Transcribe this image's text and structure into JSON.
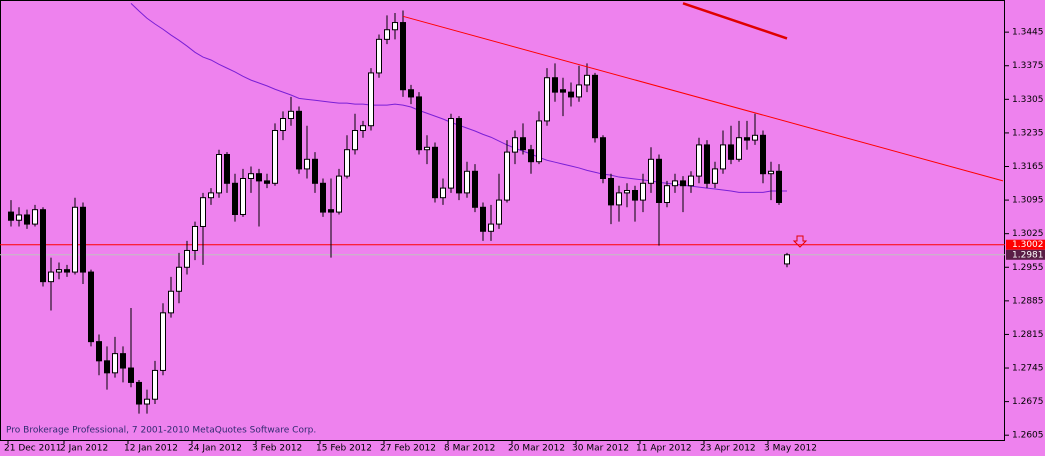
{
  "chart_data": {
    "type": "candlestick",
    "footer": "Pro Brokerage Professional, 7 2001-2010 MetaQuotes Software Corp.",
    "categories": [
      "21 Dec 2011",
      null,
      null,
      null,
      null,
      null,
      null,
      "2 Jan 2012",
      null,
      null,
      null,
      null,
      null,
      null,
      null,
      "12 Jan 2012",
      null,
      null,
      null,
      null,
      null,
      null,
      null,
      "24 Jan 2012",
      null,
      null,
      null,
      null,
      null,
      null,
      null,
      "3 Feb 2012",
      null,
      null,
      null,
      null,
      null,
      null,
      null,
      "15 Feb 2012",
      null,
      null,
      null,
      null,
      null,
      null,
      null,
      "27 Feb 2012",
      null,
      null,
      null,
      null,
      null,
      null,
      null,
      "8 Mar 2012",
      null,
      null,
      null,
      null,
      null,
      null,
      null,
      "20 Mar 2012",
      null,
      null,
      null,
      null,
      null,
      null,
      null,
      "30 Mar 2012",
      null,
      null,
      null,
      null,
      null,
      null,
      null,
      "11 Apr 2012",
      null,
      null,
      null,
      null,
      null,
      null,
      null,
      "23 Apr 2012",
      null,
      null,
      null,
      null,
      null,
      null,
      null,
      "3 May 2012",
      null,
      null
    ],
    "candles": [
      [
        1.307,
        1.3095,
        1.304,
        1.3053
      ],
      [
        1.3053,
        1.308,
        1.304,
        1.3064
      ],
      [
        1.3064,
        1.3075,
        1.3035,
        1.3045
      ],
      [
        1.3045,
        1.3085,
        1.304,
        1.3075
      ],
      [
        1.3075,
        1.308,
        1.2915,
        1.2925
      ],
      [
        1.2925,
        1.2975,
        1.2865,
        1.2945
      ],
      [
        1.2945,
        1.2965,
        1.293,
        1.295
      ],
      [
        1.295,
        1.296,
        1.2935,
        1.2945
      ],
      [
        1.2945,
        1.31,
        1.294,
        1.308
      ],
      [
        1.308,
        1.309,
        1.292,
        1.2945
      ],
      [
        1.2945,
        1.295,
        1.279,
        1.28
      ],
      [
        1.28,
        1.2815,
        1.273,
        1.276
      ],
      [
        1.276,
        1.279,
        1.27,
        1.2735
      ],
      [
        1.2735,
        1.281,
        1.2725,
        1.2775
      ],
      [
        1.2775,
        1.279,
        1.2715,
        1.2745
      ],
      [
        1.2745,
        1.287,
        1.2705,
        1.2715
      ],
      [
        1.2715,
        1.272,
        1.265,
        1.267
      ],
      [
        1.267,
        1.27,
        1.265,
        1.268
      ],
      [
        1.268,
        1.276,
        1.267,
        1.274
      ],
      [
        1.274,
        1.288,
        1.273,
        1.286
      ],
      [
        1.286,
        1.2935,
        1.285,
        1.2905
      ],
      [
        1.2905,
        1.2985,
        1.288,
        1.2955
      ],
      [
        1.2955,
        1.301,
        1.294,
        1.299
      ],
      [
        1.299,
        1.305,
        1.297,
        1.304
      ],
      [
        1.304,
        1.311,
        1.296,
        1.31
      ],
      [
        1.31,
        1.312,
        1.3085,
        1.311
      ],
      [
        1.311,
        1.32,
        1.31,
        1.319
      ],
      [
        1.319,
        1.3195,
        1.311,
        1.313
      ],
      [
        1.313,
        1.315,
        1.305,
        1.3065
      ],
      [
        1.3065,
        1.316,
        1.306,
        1.314
      ],
      [
        1.314,
        1.3165,
        1.311,
        1.315
      ],
      [
        1.315,
        1.316,
        1.304,
        1.3135
      ],
      [
        1.3135,
        1.315,
        1.312,
        1.313
      ],
      [
        1.313,
        1.3255,
        1.3125,
        1.324
      ],
      [
        1.324,
        1.328,
        1.322,
        1.3265
      ],
      [
        1.3265,
        1.331,
        1.325,
        1.328
      ],
      [
        1.328,
        1.329,
        1.315,
        1.316
      ],
      [
        1.316,
        1.325,
        1.314,
        1.318
      ],
      [
        1.318,
        1.3195,
        1.311,
        1.313
      ],
      [
        1.313,
        1.314,
        1.306,
        1.307
      ],
      [
        1.3075,
        1.314,
        1.2975,
        1.307
      ],
      [
        1.307,
        1.316,
        1.3065,
        1.3145
      ],
      [
        1.3145,
        1.323,
        1.314,
        1.32
      ],
      [
        1.32,
        1.3275,
        1.319,
        1.324
      ],
      [
        1.324,
        1.326,
        1.3225,
        1.325
      ],
      [
        1.325,
        1.337,
        1.324,
        1.336
      ],
      [
        1.336,
        1.344,
        1.335,
        1.343
      ],
      [
        1.343,
        1.348,
        1.342,
        1.345
      ],
      [
        1.345,
        1.3485,
        1.343,
        1.3465
      ],
      [
        1.3465,
        1.349,
        1.331,
        1.3325
      ],
      [
        1.3325,
        1.3335,
        1.3295,
        1.331
      ],
      [
        1.331,
        1.332,
        1.319,
        1.32
      ],
      [
        1.32,
        1.323,
        1.317,
        1.3205
      ],
      [
        1.3205,
        1.3215,
        1.309,
        1.31
      ],
      [
        1.31,
        1.314,
        1.3085,
        1.312
      ],
      [
        1.312,
        1.3275,
        1.311,
        1.3265
      ],
      [
        1.3265,
        1.327,
        1.3095,
        1.311
      ],
      [
        1.311,
        1.3175,
        1.31,
        1.3155
      ],
      [
        1.3155,
        1.317,
        1.307,
        1.308
      ],
      [
        1.308,
        1.309,
        1.301,
        1.303
      ],
      [
        1.303,
        1.3085,
        1.301,
        1.3045
      ],
      [
        1.3045,
        1.315,
        1.3035,
        1.3095
      ],
      [
        1.3095,
        1.322,
        1.309,
        1.3195
      ],
      [
        1.3195,
        1.324,
        1.317,
        1.3225
      ],
      [
        1.3225,
        1.3255,
        1.319,
        1.32
      ],
      [
        1.32,
        1.321,
        1.315,
        1.3175
      ],
      [
        1.3175,
        1.328,
        1.317,
        1.326
      ],
      [
        1.326,
        1.337,
        1.325,
        1.335
      ],
      [
        1.335,
        1.338,
        1.33,
        1.332
      ],
      [
        1.3325,
        1.335,
        1.327,
        1.332
      ],
      [
        1.332,
        1.334,
        1.329,
        1.331
      ],
      [
        1.331,
        1.3375,
        1.33,
        1.3335
      ],
      [
        1.3335,
        1.338,
        1.332,
        1.3355
      ],
      [
        1.3355,
        1.336,
        1.3215,
        1.3225
      ],
      [
        1.3225,
        1.323,
        1.313,
        1.314
      ],
      [
        1.314,
        1.315,
        1.3045,
        1.3085
      ],
      [
        1.3085,
        1.3125,
        1.305,
        1.311
      ],
      [
        1.311,
        1.313,
        1.308,
        1.3115
      ],
      [
        1.3115,
        1.3125,
        1.305,
        1.3095
      ],
      [
        1.3095,
        1.315,
        1.307,
        1.313
      ],
      [
        1.313,
        1.3205,
        1.311,
        1.318
      ],
      [
        1.318,
        1.319,
        1.3,
        1.309
      ],
      [
        1.309,
        1.3135,
        1.308,
        1.3125
      ],
      [
        1.3125,
        1.315,
        1.311,
        1.3135
      ],
      [
        1.3135,
        1.3145,
        1.307,
        1.3125
      ],
      [
        1.3125,
        1.3155,
        1.311,
        1.3145
      ],
      [
        1.3145,
        1.3225,
        1.313,
        1.321
      ],
      [
        1.321,
        1.322,
        1.312,
        1.313
      ],
      [
        1.313,
        1.3175,
        1.312,
        1.316
      ],
      [
        1.316,
        1.324,
        1.315,
        1.321
      ],
      [
        1.321,
        1.325,
        1.317,
        1.318
      ],
      [
        1.318,
        1.326,
        1.3175,
        1.3225
      ],
      [
        1.3225,
        1.326,
        1.32,
        1.322
      ],
      [
        1.322,
        1.3275,
        1.321,
        1.323
      ],
      [
        1.323,
        1.324,
        1.313,
        1.315
      ],
      [
        1.315,
        1.3175,
        1.3095,
        1.3155
      ],
      [
        1.3155,
        1.317,
        1.3085,
        1.309
      ],
      [
        1.2962,
        1.2985,
        1.2955,
        1.2981
      ]
    ],
    "moving_average": {
      "color": "#7a1fd6",
      "values": [
        null,
        null,
        null,
        null,
        null,
        null,
        null,
        null,
        null,
        null,
        null,
        null,
        null,
        null,
        null,
        1.3505,
        1.3489,
        1.3474,
        1.3462,
        1.3451,
        1.3439,
        1.3428,
        1.3416,
        1.3403,
        1.3393,
        1.3387,
        1.3378,
        1.337,
        1.3362,
        1.3353,
        1.3345,
        1.3339,
        1.3333,
        1.3326,
        1.332,
        1.3314,
        1.3307,
        1.3305,
        1.3303,
        1.3301,
        1.3299,
        1.3297,
        1.3297,
        1.3295,
        1.3295,
        1.3293,
        1.3293,
        1.3293,
        1.3295,
        1.3293,
        1.3289,
        1.3282,
        1.3276,
        1.327,
        1.3264,
        1.3257,
        1.3251,
        1.3245,
        1.3239,
        1.3232,
        1.3226,
        1.3218,
        1.321,
        1.3203,
        1.3197,
        1.3191,
        1.3184,
        1.3178,
        1.3174,
        1.317,
        1.3166,
        1.3162,
        1.3157,
        1.3153,
        1.3149,
        1.3147,
        1.3143,
        1.3141,
        1.3139,
        1.3137,
        1.3135,
        1.3132,
        1.313,
        1.3128,
        1.3126,
        1.3124,
        1.3122,
        1.312,
        1.3118,
        1.3116,
        1.3114,
        1.3111,
        1.3111,
        1.3111,
        1.3111,
        1.3114,
        1.3114,
        1.3114
      ]
    },
    "trendlines": [
      {
        "color": "#ff0000",
        "x": [
          49,
          124
        ],
        "y": [
          1.3478,
          1.3135
        ]
      },
      {
        "color": "#e00000",
        "x": [
          84,
          97
        ],
        "y": [
          1.3505,
          1.3432
        ]
      }
    ],
    "hline": {
      "value": 1.3002,
      "color": "#ff0000"
    },
    "bid": {
      "value": 1.2981,
      "color": "#c0c0c0"
    },
    "ylim": [
      1.2595,
      1.3512
    ],
    "yticks": [
      1.3445,
      1.3375,
      1.3305,
      1.3235,
      1.3165,
      1.3095,
      1.3025,
      1.2955,
      1.2885,
      1.2815,
      1.2745,
      1.2675,
      1.2605
    ],
    "up_color": "#ffffff",
    "down_color": "#000000",
    "background": "#ee82ee"
  }
}
